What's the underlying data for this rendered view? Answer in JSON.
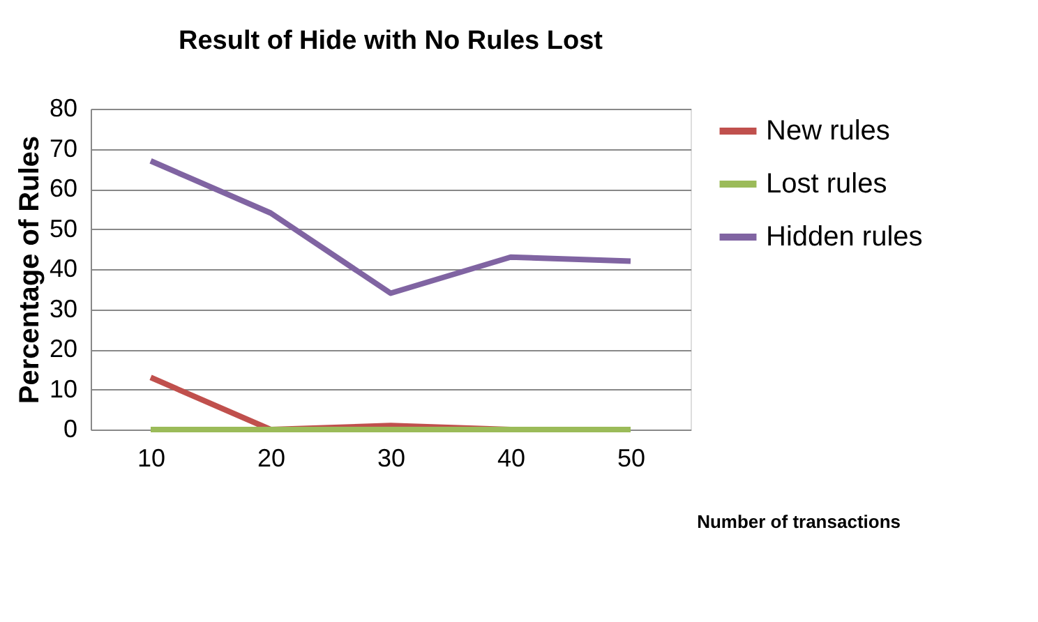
{
  "chart_data": {
    "type": "line",
    "title": "Result of Hide with No Rules Lost",
    "xlabel": "Number of transactions",
    "ylabel": "Percentage of Rules",
    "categories": [
      "10",
      "20",
      "30",
      "40",
      "50"
    ],
    "series": [
      {
        "name": "New rules",
        "color": "#c0504d",
        "values": [
          13,
          0,
          1,
          0,
          0
        ]
      },
      {
        "name": "Lost rules",
        "color": "#9bbb59",
        "values": [
          0,
          0,
          0,
          0,
          0
        ]
      },
      {
        "name": "Hidden rules",
        "color": "#8064a2",
        "values": [
          67,
          54,
          34,
          43,
          42
        ]
      }
    ],
    "ylim": [
      0,
      80
    ],
    "yticks": [
      0,
      10,
      20,
      30,
      40,
      50,
      60,
      70,
      80
    ],
    "grid": "y",
    "legend": "right",
    "marker": "none",
    "line_style": "solid"
  }
}
